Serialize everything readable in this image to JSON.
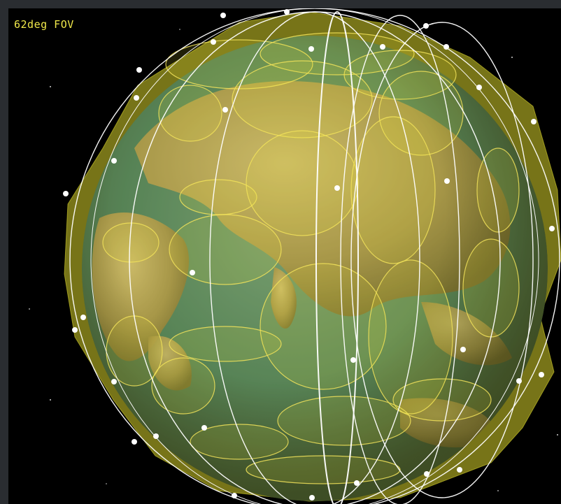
{
  "viewport": {
    "fov_label": "62deg FOV"
  },
  "scene": {
    "subject": "globe-with-satellite-constellation",
    "colors": {
      "space": "#000000",
      "frame": "#2a2d31",
      "overlay_fill": "#e6df2a",
      "overlay_stroke": "#f2e35a",
      "orbit_line": "#ffffff",
      "satellite": "#ffffff",
      "label": "#f0e84a"
    }
  }
}
